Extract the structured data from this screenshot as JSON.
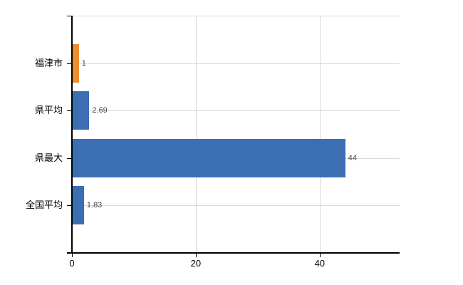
{
  "chart_data": {
    "type": "bar",
    "orientation": "horizontal",
    "title": "",
    "xlabel": "",
    "ylabel": "",
    "categories": [
      "福津市",
      "県平均",
      "県最大",
      "全国平均"
    ],
    "values": [
      1,
      2.69,
      44,
      1.83
    ],
    "value_labels": [
      "1",
      "2.69",
      "44",
      "1.83"
    ],
    "x_ticks": [
      0,
      20,
      40
    ],
    "x_tick_labels": [
      "0",
      "20",
      "40"
    ],
    "xlim": [
      0,
      52.9
    ],
    "grid": "on",
    "legend_position": "none",
    "colors": {
      "bar_default": "#3c6eb4",
      "bar_highlight": "#ee8c32",
      "highlight_index": 0,
      "gridline": "#d9d9d9",
      "axis": "#000000",
      "category_label": "#000000",
      "tick_label": "#000000",
      "value_label": "#444444",
      "background": "#ffffff"
    }
  }
}
